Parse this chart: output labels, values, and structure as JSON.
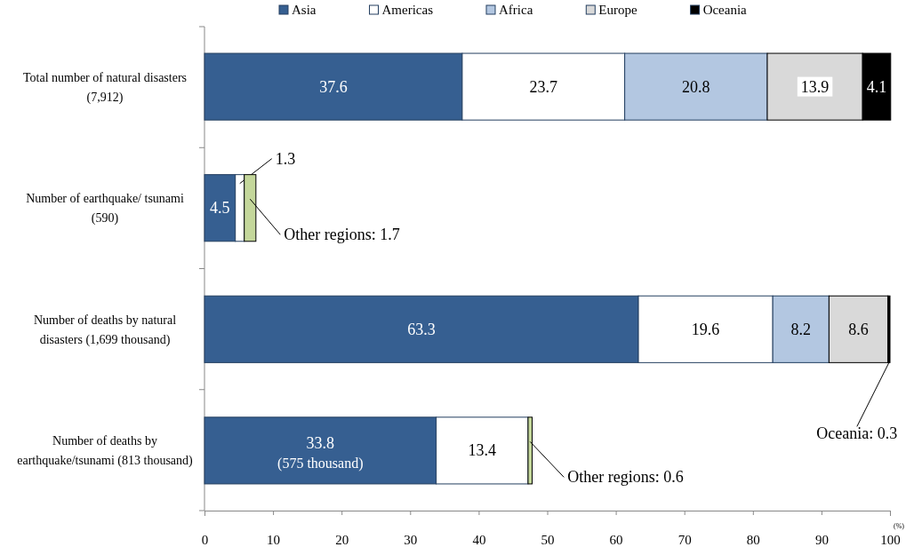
{
  "chart_data": {
    "type": "bar",
    "orientation": "horizontal",
    "stacked": true,
    "categories": [
      "Total number of natural disasters (7,912)",
      "Number of earthquake/ tsunami (590)",
      "Number of deaths by natural disasters (1,699 thousand)",
      "Number of deaths by earthquake/tsunami (813 thousand)"
    ],
    "series": [
      {
        "name": "Asia",
        "color": "#365f91",
        "values": [
          37.6,
          4.5,
          63.3,
          33.8
        ],
        "value_labels": [
          "37.6",
          "4.5",
          "63.3",
          "33.8"
        ]
      },
      {
        "name": "Americas",
        "color": "#ffffff",
        "values": [
          23.7,
          1.3,
          19.6,
          13.4
        ],
        "value_labels": [
          "23.7",
          "1.3",
          "19.6",
          "13.4"
        ]
      },
      {
        "name": "Africa",
        "color": "#b3c7e1",
        "values": [
          20.8,
          null,
          8.2,
          null
        ],
        "value_labels": [
          "20.8",
          null,
          "8.2",
          null
        ]
      },
      {
        "name": "Europe",
        "color": "#d9d9d9",
        "values": [
          13.9,
          null,
          8.6,
          null
        ],
        "value_labels": [
          "13.9",
          null,
          "8.6",
          null
        ]
      },
      {
        "name": "Oceania",
        "color": "#000000",
        "values": [
          4.1,
          null,
          0.3,
          null
        ],
        "value_labels": [
          "4.1",
          null,
          "Oceania: 0.3",
          null
        ]
      },
      {
        "color": "#c4d79b",
        "values": [
          null,
          1.7,
          null,
          0.6
        ],
        "value_labels": [
          null,
          "Other regions: 1.7",
          null,
          "Other regions: 0.6"
        ]
      }
    ],
    "annotations": [
      "(575 thousand)"
    ],
    "xlabel": "(%)",
    "xlim": [
      0,
      100
    ],
    "xticks": [
      0,
      10,
      20,
      30,
      40,
      50,
      60,
      70,
      80,
      90,
      100
    ],
    "legend": "top",
    "grid": false
  }
}
